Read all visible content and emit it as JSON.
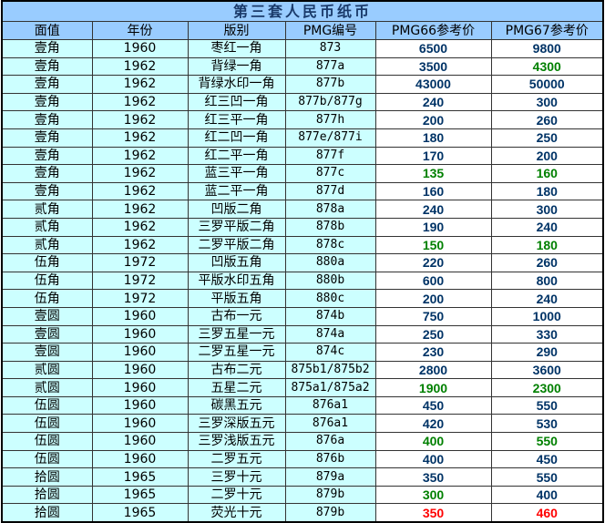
{
  "title": "第三套人民币纸币",
  "headers": [
    "面值",
    "年份",
    "版别",
    "PMG编号",
    "PMG66参考价",
    "PMG67参考价"
  ],
  "colors": {
    "header_bg": "#99ccff",
    "cell_bg": "#ccffff",
    "price_default": "#003366",
    "green": "#008000",
    "red": "#ff0000"
  },
  "rows": [
    {
      "denom": "壹角",
      "year": "1960",
      "variety": "枣红一角",
      "pmg": "873",
      "p66": "6500",
      "p67": "9800",
      "c66": "default",
      "c67": "default"
    },
    {
      "denom": "壹角",
      "year": "1962",
      "variety": "背绿一角",
      "pmg": "877a",
      "p66": "3500",
      "p67": "4300",
      "c66": "default",
      "c67": "green"
    },
    {
      "denom": "壹角",
      "year": "1962",
      "variety": "背绿水印一角",
      "pmg": "877b",
      "p66": "43000",
      "p67": "50000",
      "c66": "default",
      "c67": "default"
    },
    {
      "denom": "壹角",
      "year": "1962",
      "variety": "红三凹一角",
      "pmg": "877b/877g",
      "p66": "240",
      "p67": "300",
      "c66": "default",
      "c67": "default"
    },
    {
      "denom": "壹角",
      "year": "1962",
      "variety": "红三平一角",
      "pmg": "877h",
      "p66": "200",
      "p67": "260",
      "c66": "default",
      "c67": "default"
    },
    {
      "denom": "壹角",
      "year": "1962",
      "variety": "红二凹一角",
      "pmg": "877e/877i",
      "p66": "180",
      "p67": "250",
      "c66": "default",
      "c67": "default"
    },
    {
      "denom": "壹角",
      "year": "1962",
      "variety": "红二平一角",
      "pmg": "877f",
      "p66": "170",
      "p67": "200",
      "c66": "default",
      "c67": "default"
    },
    {
      "denom": "壹角",
      "year": "1962",
      "variety": "蓝三平一角",
      "pmg": "877c",
      "p66": "135",
      "p67": "160",
      "c66": "green",
      "c67": "green"
    },
    {
      "denom": "壹角",
      "year": "1962",
      "variety": "蓝二平一角",
      "pmg": "877d",
      "p66": "160",
      "p67": "180",
      "c66": "default",
      "c67": "default"
    },
    {
      "denom": "贰角",
      "year": "1962",
      "variety": "凹版二角",
      "pmg": "878a",
      "p66": "240",
      "p67": "300",
      "c66": "default",
      "c67": "default"
    },
    {
      "denom": "贰角",
      "year": "1962",
      "variety": "三罗平版二角",
      "pmg": "878b",
      "p66": "190",
      "p67": "240",
      "c66": "default",
      "c67": "default"
    },
    {
      "denom": "贰角",
      "year": "1962",
      "variety": "二罗平版二角",
      "pmg": "878c",
      "p66": "150",
      "p67": "180",
      "c66": "green",
      "c67": "green"
    },
    {
      "denom": "伍角",
      "year": "1972",
      "variety": "凹版五角",
      "pmg": "880a",
      "p66": "220",
      "p67": "260",
      "c66": "default",
      "c67": "default"
    },
    {
      "denom": "伍角",
      "year": "1972",
      "variety": "平版水印五角",
      "pmg": "880b",
      "p66": "600",
      "p67": "800",
      "c66": "default",
      "c67": "default"
    },
    {
      "denom": "伍角",
      "year": "1972",
      "variety": "平版五角",
      "pmg": "880c",
      "p66": "200",
      "p67": "240",
      "c66": "default",
      "c67": "default"
    },
    {
      "denom": "壹圆",
      "year": "1960",
      "variety": "古布一元",
      "pmg": "874b",
      "p66": "750",
      "p67": "1000",
      "c66": "default",
      "c67": "default"
    },
    {
      "denom": "壹圆",
      "year": "1960",
      "variety": "三罗五星一元",
      "pmg": "874a",
      "p66": "250",
      "p67": "330",
      "c66": "default",
      "c67": "default"
    },
    {
      "denom": "壹圆",
      "year": "1960",
      "variety": "二罗五星一元",
      "pmg": "874c",
      "p66": "230",
      "p67": "290",
      "c66": "default",
      "c67": "default"
    },
    {
      "denom": "贰圆",
      "year": "1960",
      "variety": "古布二元",
      "pmg": "875b1/875b2",
      "p66": "2800",
      "p67": "3600",
      "c66": "default",
      "c67": "default"
    },
    {
      "denom": "贰圆",
      "year": "1960",
      "variety": "五星二元",
      "pmg": "875a1/875a2",
      "p66": "1900",
      "p67": "2300",
      "c66": "green",
      "c67": "green"
    },
    {
      "denom": "伍圆",
      "year": "1960",
      "variety": "碳黑五元",
      "pmg": "876a1",
      "p66": "450",
      "p67": "550",
      "c66": "default",
      "c67": "default"
    },
    {
      "denom": "伍圆",
      "year": "1960",
      "variety": "三罗深版五元",
      "pmg": "876a1",
      "p66": "420",
      "p67": "530",
      "c66": "default",
      "c67": "default"
    },
    {
      "denom": "伍圆",
      "year": "1960",
      "variety": "三罗浅版五元",
      "pmg": "876a",
      "p66": "400",
      "p67": "550",
      "c66": "green",
      "c67": "green"
    },
    {
      "denom": "伍圆",
      "year": "1960",
      "variety": "二罗五元",
      "pmg": "876b",
      "p66": "400",
      "p67": "450",
      "c66": "default",
      "c67": "default"
    },
    {
      "denom": "拾圆",
      "year": "1965",
      "variety": "三罗十元",
      "pmg": "879a",
      "p66": "350",
      "p67": "550",
      "c66": "default",
      "c67": "default"
    },
    {
      "denom": "拾圆",
      "year": "1965",
      "variety": "二罗十元",
      "pmg": "879b",
      "p66": "300",
      "p67": "400",
      "c66": "green",
      "c67": "default"
    },
    {
      "denom": "拾圆",
      "year": "1965",
      "variety": "荧光十元",
      "pmg": "879b",
      "p66": "350",
      "p67": "460",
      "c66": "red",
      "c67": "red"
    }
  ]
}
